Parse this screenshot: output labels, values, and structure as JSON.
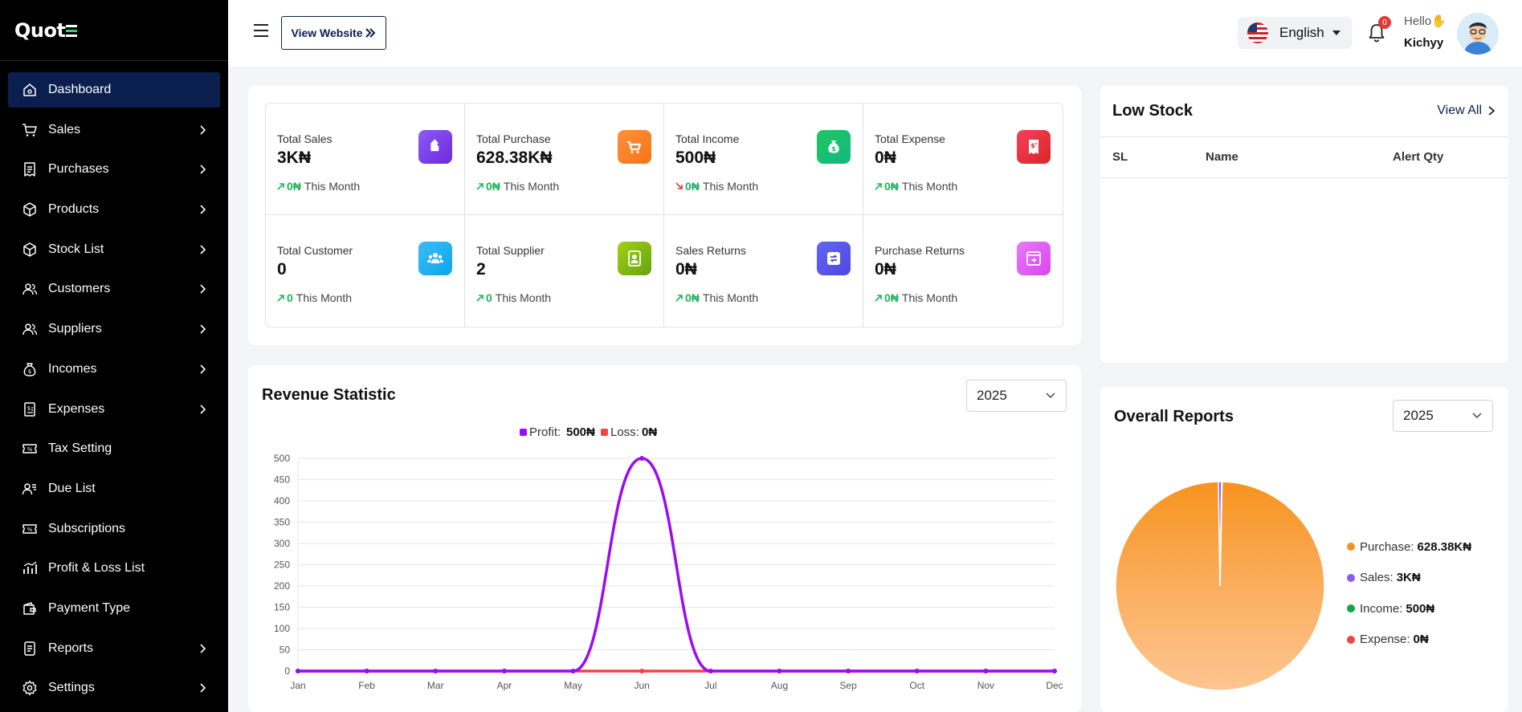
{
  "brand": {
    "logo_text": "Quot"
  },
  "sidebar": {
    "items": [
      {
        "label": "Dashboard",
        "icon": "home-icon",
        "active": true,
        "has_submenu": false
      },
      {
        "label": "Sales",
        "icon": "cart-icon",
        "has_submenu": true
      },
      {
        "label": "Purchases",
        "icon": "receipt-icon",
        "has_submenu": true
      },
      {
        "label": "Products",
        "icon": "box-icon",
        "has_submenu": true
      },
      {
        "label": "Stock List",
        "icon": "box-icon",
        "has_submenu": true
      },
      {
        "label": "Customers",
        "icon": "users-icon",
        "has_submenu": true
      },
      {
        "label": "Suppliers",
        "icon": "users-icon",
        "has_submenu": true
      },
      {
        "label": "Incomes",
        "icon": "money-bag-icon",
        "has_submenu": true
      },
      {
        "label": "Expenses",
        "icon": "invoice-icon",
        "has_submenu": true
      },
      {
        "label": "Tax Setting",
        "icon": "ticket-icon",
        "has_submenu": false
      },
      {
        "label": "Due List",
        "icon": "user-list-icon",
        "has_submenu": false
      },
      {
        "label": "Subscriptions",
        "icon": "ticket-icon",
        "has_submenu": false
      },
      {
        "label": "Profit & Loss List",
        "icon": "bar-chart-icon",
        "has_submenu": false
      },
      {
        "label": "Payment Type",
        "icon": "wallet-icon",
        "has_submenu": false
      },
      {
        "label": "Reports",
        "icon": "report-icon",
        "has_submenu": true
      },
      {
        "label": "Settings",
        "icon": "gear-icon",
        "has_submenu": true
      }
    ]
  },
  "header": {
    "view_website": "View Website",
    "language": "English",
    "notifications_count": "0",
    "greeting": "Hello",
    "greeting_emoji": "✋",
    "user_name": "Kichyy"
  },
  "stats": [
    {
      "label": "Total Sales",
      "value": "3K₦",
      "delta": "0₦",
      "trend": "up",
      "period": "This Month",
      "icon": "tag-icon",
      "color_from": "#8b5cf6",
      "color_to": "#6d28d9"
    },
    {
      "label": "Total Purchase",
      "value": "628.38K₦",
      "delta": "0₦",
      "trend": "up",
      "period": "This Month",
      "icon": "cart-icon",
      "color_from": "#fb923c",
      "color_to": "#f97316"
    },
    {
      "label": "Total Income",
      "value": "500₦",
      "delta": "0₦",
      "trend": "down",
      "period": "This Month",
      "icon": "money-bag-icon",
      "color_from": "#22c55e",
      "color_to": "#10b981"
    },
    {
      "label": "Total Expense",
      "value": "0₦",
      "delta": "0₦",
      "trend": "up",
      "period": "This Month",
      "icon": "invoice-icon",
      "color_from": "#f43f5e",
      "color_to": "#dc2626"
    },
    {
      "label": "Total Customer",
      "value": "0",
      "delta": "0",
      "trend": "up",
      "period": "This Month",
      "icon": "users-icon",
      "color_from": "#38bdf8",
      "color_to": "#0ea5e9"
    },
    {
      "label": "Total Supplier",
      "value": "2",
      "delta": "0",
      "trend": "up",
      "period": "This Month",
      "icon": "user-icon",
      "color_from": "#a3d11a",
      "color_to": "#65a30d"
    },
    {
      "label": "Sales Returns",
      "value": "0₦",
      "delta": "0₦",
      "trend": "up",
      "period": "This Month",
      "icon": "return-icon",
      "color_from": "#6366f1",
      "color_to": "#4f46e5"
    },
    {
      "label": "Purchase Returns",
      "value": "0₦",
      "delta": "0₦",
      "trend": "up",
      "period": "This Month",
      "icon": "return-box-icon",
      "color_from": "#e879f9",
      "color_to": "#d946ef"
    }
  ],
  "low_stock": {
    "title": "Low Stock",
    "view_all": "View All",
    "columns": [
      "SL",
      "Name",
      "Alert Qty"
    ],
    "rows": []
  },
  "revenue": {
    "title": "Revenue Statistic",
    "year": "2025",
    "legend": [
      {
        "label": "Profit:",
        "value": "500₦",
        "color": "#9b0cf0"
      },
      {
        "label": "Loss:",
        "value": "0₦",
        "color": "#ef4444"
      }
    ]
  },
  "overall": {
    "title": "Overall Reports",
    "year": "2025",
    "legend": [
      {
        "label": "Purchase:",
        "value": "628.38K₦",
        "color": "#f7931e"
      },
      {
        "label": "Sales:",
        "value": "3K₦",
        "color": "#8b5cf6"
      },
      {
        "label": "Income:",
        "value": "500₦",
        "color": "#16a34a"
      },
      {
        "label": "Expense:",
        "value": "0₦",
        "color": "#ef4444"
      }
    ]
  },
  "chart_data": [
    {
      "type": "line",
      "categories": [
        "Jan",
        "Feb",
        "Mar",
        "Apr",
        "May",
        "Jun",
        "Jul",
        "Aug",
        "Sep",
        "Oct",
        "Nov",
        "Dec"
      ],
      "series": [
        {
          "name": "Profit",
          "values": [
            0,
            0,
            0,
            0,
            0,
            500,
            0,
            0,
            0,
            0,
            0,
            0
          ],
          "color": "#9b0cf0"
        },
        {
          "name": "Loss",
          "values": [
            0,
            0,
            0,
            0,
            0,
            0,
            0,
            0,
            0,
            0,
            0,
            0
          ],
          "color": "#ef4444"
        }
      ],
      "yticks": [
        0,
        50,
        100,
        150,
        200,
        250,
        300,
        350,
        400,
        450,
        500
      ],
      "ylim": [
        0,
        500
      ],
      "grid": true,
      "legend": "top-center",
      "title": "",
      "xlabel": "",
      "ylabel": ""
    },
    {
      "type": "pie",
      "labels": [
        "Purchase",
        "Sales",
        "Income",
        "Expense"
      ],
      "values": [
        628380,
        3000,
        500,
        0
      ],
      "colors": [
        "#f7931e",
        "#8b5cf6",
        "#16a34a",
        "#ef4444"
      ],
      "legend": "right"
    }
  ]
}
